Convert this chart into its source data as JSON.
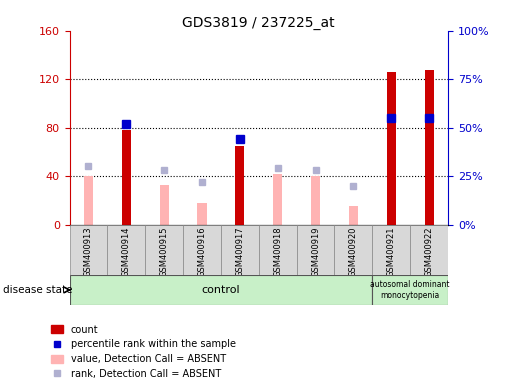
{
  "title": "GDS3819 / 237225_at",
  "samples": [
    "GSM400913",
    "GSM400914",
    "GSM400915",
    "GSM400916",
    "GSM400917",
    "GSM400918",
    "GSM400919",
    "GSM400920",
    "GSM400921",
    "GSM400922"
  ],
  "count_values": [
    null,
    78,
    null,
    null,
    65,
    null,
    null,
    null,
    126,
    128
  ],
  "value_absent": [
    40,
    null,
    33,
    18,
    null,
    42,
    40,
    15,
    null,
    null
  ],
  "rank_absent_pct": [
    30,
    null,
    28,
    22,
    null,
    29,
    28,
    20,
    null,
    null
  ],
  "percentile_rank_pct": [
    null,
    52,
    null,
    null,
    44,
    null,
    null,
    null,
    55,
    55
  ],
  "ylim_left": [
    0,
    160
  ],
  "ylim_right": [
    0,
    100
  ],
  "yticks_left": [
    0,
    40,
    80,
    120,
    160
  ],
  "yticks_right": [
    0,
    25,
    50,
    75,
    100
  ],
  "ytick_labels_left": [
    "0",
    "40",
    "80",
    "120",
    "160"
  ],
  "ytick_labels_right": [
    "0%",
    "25%",
    "50%",
    "75%",
    "100%"
  ],
  "color_count": "#cc0000",
  "color_percentile": "#0000cc",
  "color_value_absent": "#ffb3b3",
  "color_rank_absent": "#b0b0d0",
  "disease_state_control": "control",
  "disease_state_disease": "autosomal dominant\nmonocytopenia",
  "bg_color": "#d8d8d8",
  "plot_bg": "#ffffff",
  "bar_width": 0.35,
  "disease_band_color": "#c8f0c8"
}
